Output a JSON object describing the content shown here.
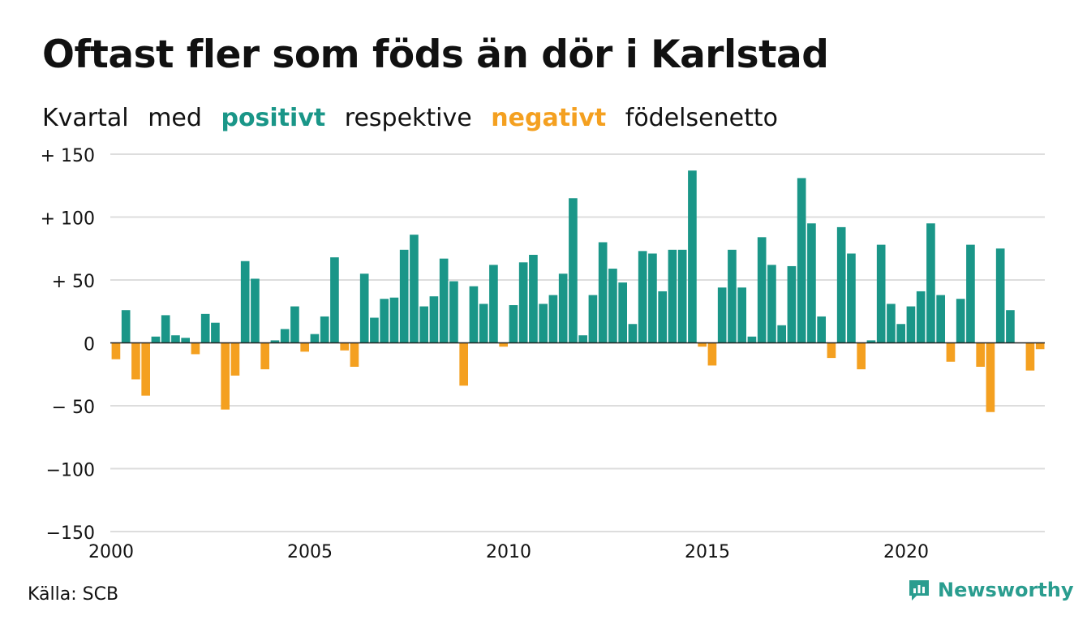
{
  "title": "Oftast fler som föds än dör i Karlstad",
  "subtitle": {
    "w1": "Kvartal",
    "w2": "med",
    "positive": "positivt",
    "w3": "respektive",
    "negative": "negativt",
    "w4": "födelsenetto"
  },
  "source": "Källa: SCB",
  "brand": {
    "name": "Newsworthy",
    "icon": "newsworthy-logo-icon"
  },
  "colors": {
    "positive": "#1a9688",
    "negative": "#f4a020",
    "grid": "#dddddd",
    "text": "#111111"
  },
  "chart_data": {
    "type": "bar",
    "title": "Oftast fler som föds än dör i Karlstad",
    "xlabel": "",
    "ylabel": "",
    "ylim": [
      -150,
      150
    ],
    "yticks": [
      150,
      100,
      50,
      0,
      -50,
      -100,
      -150
    ],
    "ytick_labels": [
      "+ 150",
      "+ 100",
      "+  50",
      "0",
      "− 50",
      "−100",
      "−150"
    ],
    "xticks": [
      2000,
      2005,
      2010,
      2015,
      2020
    ],
    "x_start": "2000 Q1",
    "series": [
      {
        "values": [
          -13,
          26,
          -29,
          -42,
          5,
          22,
          6,
          4,
          -9,
          23,
          16,
          -53,
          -26,
          65,
          51,
          -21,
          2,
          11,
          29,
          -7,
          7,
          21,
          68,
          -6,
          -19,
          55,
          20,
          35,
          36,
          74,
          86,
          29,
          37,
          67,
          49,
          -34,
          45,
          31,
          62,
          -3,
          30,
          64,
          70,
          31,
          38,
          55,
          115,
          6,
          38,
          80,
          59,
          48,
          15,
          73,
          71,
          41,
          74,
          74,
          137,
          -3,
          -18,
          44,
          74,
          44,
          5,
          84,
          62,
          14,
          61,
          131,
          95,
          21,
          -12,
          92,
          71,
          -21,
          2,
          78,
          31,
          15,
          29,
          41,
          95,
          38,
          -15,
          35,
          78,
          -19,
          -55,
          75,
          26,
          0,
          -22,
          -5
        ]
      }
    ]
  }
}
